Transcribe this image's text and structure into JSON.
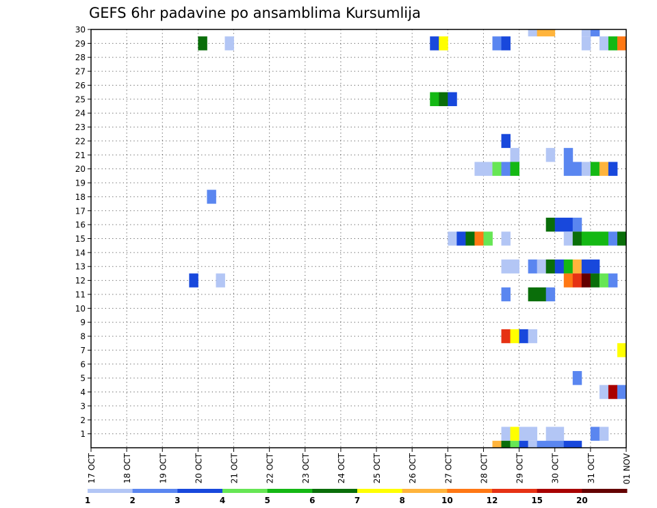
{
  "chart_data": {
    "type": "heatmap",
    "title": "GEFS 6hr padavine po ansamblima Kursumlija",
    "xlabel": "",
    "ylabel": "",
    "x_tick_labels": [
      "17 OCT",
      "18 OCT",
      "19 OCT",
      "20 OCT",
      "21 OCT",
      "22 OCT",
      "23 OCT",
      "24 OCT",
      "25 OCT",
      "26 OCT",
      "27 OCT",
      "28 OCT",
      "29 OCT",
      "30 OCT",
      "31 OCT",
      "01 NOV"
    ],
    "x_range_days": [
      0,
      15
    ],
    "y_tick_labels": [
      "1",
      "2",
      "3",
      "4",
      "5",
      "6",
      "7",
      "8",
      "9",
      "10",
      "11",
      "12",
      "13",
      "14",
      "15",
      "16",
      "17",
      "18",
      "19",
      "20",
      "21",
      "22",
      "23",
      "24",
      "25",
      "26",
      "27",
      "28",
      "29",
      "30"
    ],
    "y_range": [
      0,
      30
    ],
    "grid": true,
    "colorbar": {
      "levels": [
        "1",
        "2",
        "3",
        "4",
        "5",
        "6",
        "7",
        "8",
        "10",
        "12",
        "15",
        "20"
      ],
      "colors": [
        "#b3c6f5",
        "#5a86f0",
        "#1848dc",
        "#66e654",
        "#14b814",
        "#0a6e0a",
        "#ffff00",
        "#ffb43c",
        "#ff7814",
        "#e63214",
        "#a80000",
        "#640000"
      ]
    },
    "units_note": "cells: member (y), day offset from 17 OCT in 0.25-day (6 h) steps (x), precipitation class index c (0 = 1-2 mm ... 11 = >=20 mm)",
    "cells": [
      {
        "m": 30,
        "x": 12.25,
        "c": 0
      },
      {
        "m": 30,
        "x": 12.5,
        "c": 7
      },
      {
        "m": 30,
        "x": 12.75,
        "c": 7
      },
      {
        "m": 30,
        "x": 13.75,
        "c": 0
      },
      {
        "m": 30,
        "x": 14.0,
        "c": 1
      },
      {
        "m": 29,
        "x": 3.0,
        "c": 5
      },
      {
        "m": 29,
        "x": 3.75,
        "c": 0
      },
      {
        "m": 29,
        "x": 9.5,
        "c": 2
      },
      {
        "m": 29,
        "x": 9.75,
        "c": 6
      },
      {
        "m": 29,
        "x": 11.25,
        "c": 1
      },
      {
        "m": 29,
        "x": 11.5,
        "c": 2
      },
      {
        "m": 29,
        "x": 13.75,
        "c": 0
      },
      {
        "m": 29,
        "x": 14.25,
        "c": 0
      },
      {
        "m": 29,
        "x": 14.5,
        "c": 4
      },
      {
        "m": 29,
        "x": 14.75,
        "c": 8
      },
      {
        "m": 25,
        "x": 9.5,
        "c": 4
      },
      {
        "m": 25,
        "x": 9.75,
        "c": 5
      },
      {
        "m": 25,
        "x": 10.0,
        "c": 2
      },
      {
        "m": 22,
        "x": 11.5,
        "c": 2
      },
      {
        "m": 21,
        "x": 11.75,
        "c": 0
      },
      {
        "m": 21,
        "x": 12.75,
        "c": 0
      },
      {
        "m": 21,
        "x": 13.25,
        "c": 1
      },
      {
        "m": 20,
        "x": 10.75,
        "c": 0
      },
      {
        "m": 20,
        "x": 11.0,
        "c": 0
      },
      {
        "m": 20,
        "x": 11.25,
        "c": 3
      },
      {
        "m": 20,
        "x": 11.5,
        "c": 1
      },
      {
        "m": 20,
        "x": 11.75,
        "c": 4
      },
      {
        "m": 20,
        "x": 13.25,
        "c": 1
      },
      {
        "m": 20,
        "x": 13.5,
        "c": 1
      },
      {
        "m": 20,
        "x": 13.75,
        "c": 0
      },
      {
        "m": 20,
        "x": 14.0,
        "c": 4
      },
      {
        "m": 20,
        "x": 14.25,
        "c": 7
      },
      {
        "m": 20,
        "x": 14.5,
        "c": 2
      },
      {
        "m": 18,
        "x": 3.25,
        "c": 1
      },
      {
        "m": 16,
        "x": 12.75,
        "c": 5
      },
      {
        "m": 16,
        "x": 13.0,
        "c": 2
      },
      {
        "m": 16,
        "x": 13.25,
        "c": 2
      },
      {
        "m": 16,
        "x": 13.5,
        "c": 1
      },
      {
        "m": 15,
        "x": 10.0,
        "c": 0
      },
      {
        "m": 15,
        "x": 10.25,
        "c": 2
      },
      {
        "m": 15,
        "x": 10.5,
        "c": 5
      },
      {
        "m": 15,
        "x": 10.75,
        "c": 8
      },
      {
        "m": 15,
        "x": 11.0,
        "c": 3
      },
      {
        "m": 15,
        "x": 11.5,
        "c": 0
      },
      {
        "m": 15,
        "x": 13.25,
        "c": 0
      },
      {
        "m": 15,
        "x": 13.5,
        "c": 5
      },
      {
        "m": 15,
        "x": 13.75,
        "c": 4
      },
      {
        "m": 15,
        "x": 14.0,
        "c": 4
      },
      {
        "m": 15,
        "x": 14.25,
        "c": 4
      },
      {
        "m": 15,
        "x": 14.5,
        "c": 1
      },
      {
        "m": 15,
        "x": 14.75,
        "c": 5
      },
      {
        "m": 13,
        "x": 11.5,
        "c": 0
      },
      {
        "m": 13,
        "x": 11.75,
        "c": 0
      },
      {
        "m": 13,
        "x": 12.25,
        "c": 1
      },
      {
        "m": 13,
        "x": 12.5,
        "c": 0
      },
      {
        "m": 13,
        "x": 12.75,
        "c": 5
      },
      {
        "m": 13,
        "x": 13.0,
        "c": 2
      },
      {
        "m": 13,
        "x": 13.25,
        "c": 4
      },
      {
        "m": 13,
        "x": 13.5,
        "c": 7
      },
      {
        "m": 13,
        "x": 13.75,
        "c": 2
      },
      {
        "m": 13,
        "x": 14.0,
        "c": 2
      },
      {
        "m": 12,
        "x": 2.75,
        "c": 2
      },
      {
        "m": 12,
        "x": 3.5,
        "c": 0
      },
      {
        "m": 12,
        "x": 13.25,
        "c": 8
      },
      {
        "m": 12,
        "x": 13.5,
        "c": 9
      },
      {
        "m": 12,
        "x": 13.75,
        "c": 11
      },
      {
        "m": 12,
        "x": 14.0,
        "c": 5
      },
      {
        "m": 12,
        "x": 14.25,
        "c": 3
      },
      {
        "m": 12,
        "x": 14.5,
        "c": 1
      },
      {
        "m": 11,
        "x": 11.5,
        "c": 1
      },
      {
        "m": 11,
        "x": 12.25,
        "c": 5
      },
      {
        "m": 11,
        "x": 12.5,
        "c": 5
      },
      {
        "m": 11,
        "x": 12.75,
        "c": 1
      },
      {
        "m": 8,
        "x": 11.5,
        "c": 9
      },
      {
        "m": 8,
        "x": 11.75,
        "c": 6
      },
      {
        "m": 8,
        "x": 12.0,
        "c": 2
      },
      {
        "m": 8,
        "x": 12.25,
        "c": 0
      },
      {
        "m": 7,
        "x": 14.75,
        "c": 6
      },
      {
        "m": 5,
        "x": 13.5,
        "c": 1
      },
      {
        "m": 4,
        "x": 14.25,
        "c": 0
      },
      {
        "m": 4,
        "x": 14.5,
        "c": 10
      },
      {
        "m": 4,
        "x": 14.75,
        "c": 1
      },
      {
        "m": 1,
        "x": 11.5,
        "c": 0
      },
      {
        "m": 1,
        "x": 11.75,
        "c": 6
      },
      {
        "m": 1,
        "x": 12.0,
        "c": 0
      },
      {
        "m": 1,
        "x": 12.25,
        "c": 0
      },
      {
        "m": 1,
        "x": 12.75,
        "c": 0
      },
      {
        "m": 1,
        "x": 13.0,
        "c": 0
      },
      {
        "m": 1,
        "x": 14.0,
        "c": 1
      },
      {
        "m": 1,
        "x": 14.25,
        "c": 0
      },
      {
        "m": 0,
        "x": 11.25,
        "c": 7
      },
      {
        "m": 0,
        "x": 11.5,
        "c": 5
      },
      {
        "m": 0,
        "x": 11.75,
        "c": 3
      },
      {
        "m": 0,
        "x": 12.0,
        "c": 2
      },
      {
        "m": 0,
        "x": 12.25,
        "c": 0
      },
      {
        "m": 0,
        "x": 12.5,
        "c": 1
      },
      {
        "m": 0,
        "x": 12.75,
        "c": 1
      },
      {
        "m": 0,
        "x": 13.0,
        "c": 1
      },
      {
        "m": 0,
        "x": 13.25,
        "c": 2
      },
      {
        "m": 0,
        "x": 13.5,
        "c": 2
      }
    ]
  }
}
